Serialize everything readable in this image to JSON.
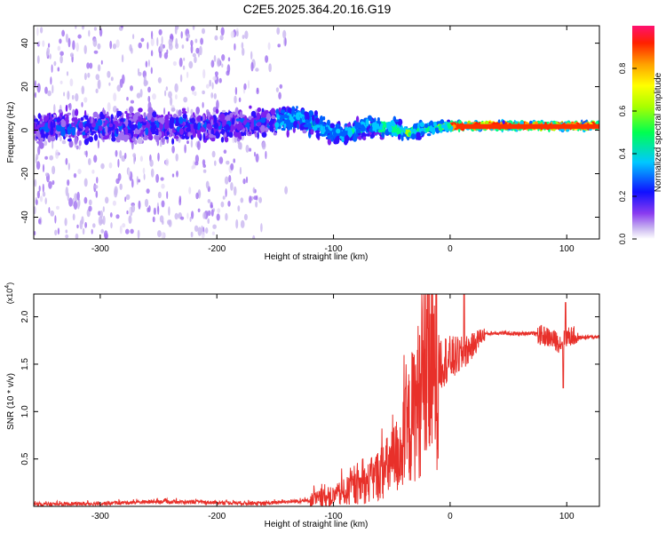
{
  "title": "C2E5.2025.364.20.16.G19",
  "chart_data": [
    {
      "type": "heatmap",
      "xlabel": "Height of straight line (km)",
      "ylabel": "Frequency (Hz)",
      "xlim": [
        -357,
        128
      ],
      "ylim": [
        -50,
        48
      ],
      "xticks": [
        -300,
        -200,
        -100,
        0,
        100
      ],
      "yticks": [
        -40,
        -20,
        0,
        20,
        40
      ],
      "colorbar": {
        "label": "Normalized spectral amplitude",
        "range": [
          0.0,
          1.0
        ],
        "ticks": [
          "0.0",
          "0.2",
          "0.4",
          "0.6",
          "0.8"
        ]
      },
      "band_center_hz": [
        [
          -350,
          1
        ],
        [
          -300,
          2
        ],
        [
          -250,
          2
        ],
        [
          -200,
          2
        ],
        [
          -175,
          3
        ],
        [
          -150,
          4
        ],
        [
          -130,
          6
        ],
        [
          -110,
          1
        ],
        [
          -90,
          -2
        ],
        [
          -70,
          2
        ],
        [
          -50,
          1
        ],
        [
          -35,
          -1
        ],
        [
          -20,
          1
        ],
        [
          0,
          2
        ],
        [
          50,
          2
        ],
        [
          100,
          2
        ],
        [
          128,
          2
        ]
      ],
      "band_halfwidth_hz": [
        [
          -350,
          8
        ],
        [
          -250,
          8
        ],
        [
          -175,
          7
        ],
        [
          -130,
          6
        ],
        [
          -100,
          5
        ],
        [
          -60,
          5
        ],
        [
          -40,
          4
        ],
        [
          -20,
          3
        ],
        [
          0,
          2
        ],
        [
          50,
          1.5
        ],
        [
          128,
          1.5
        ]
      ]
    },
    {
      "type": "line",
      "xlabel": "Height of straight line (km)",
      "ylabel": "SNR (10 * v/v)",
      "y_scale_label": "(x10",
      "y_scale_exp": "4",
      "xlim": [
        -357,
        128
      ],
      "ylim": [
        0.0,
        2.24
      ],
      "xticks": [
        -300,
        -200,
        -100,
        0,
        100
      ],
      "yticks": [
        "0.5",
        "1.0",
        "1.5",
        "2.0"
      ],
      "series": [
        {
          "name": "SNR",
          "color": "#e8302a",
          "x": [
            -357,
            -300,
            -250,
            -200,
            -160,
            -140,
            -120,
            -100,
            -90,
            -80,
            -70,
            -60,
            -50,
            -40,
            -30,
            -25,
            -20,
            -15,
            -10,
            -5,
            0,
            10,
            20,
            25,
            30,
            40,
            60,
            70,
            80,
            85,
            90,
            95,
            100,
            105,
            110,
            128
          ],
          "y": [
            0.02,
            0.03,
            0.05,
            0.04,
            0.03,
            0.05,
            0.06,
            0.1,
            0.15,
            0.2,
            0.25,
            0.35,
            0.45,
            0.65,
            1.05,
            1.2,
            1.35,
            1.45,
            1.5,
            1.55,
            1.55,
            1.6,
            1.7,
            1.78,
            1.82,
            1.83,
            1.82,
            1.83,
            1.8,
            1.78,
            1.75,
            1.72,
            1.78,
            1.8,
            1.78,
            1.79
          ]
        }
      ]
    }
  ]
}
